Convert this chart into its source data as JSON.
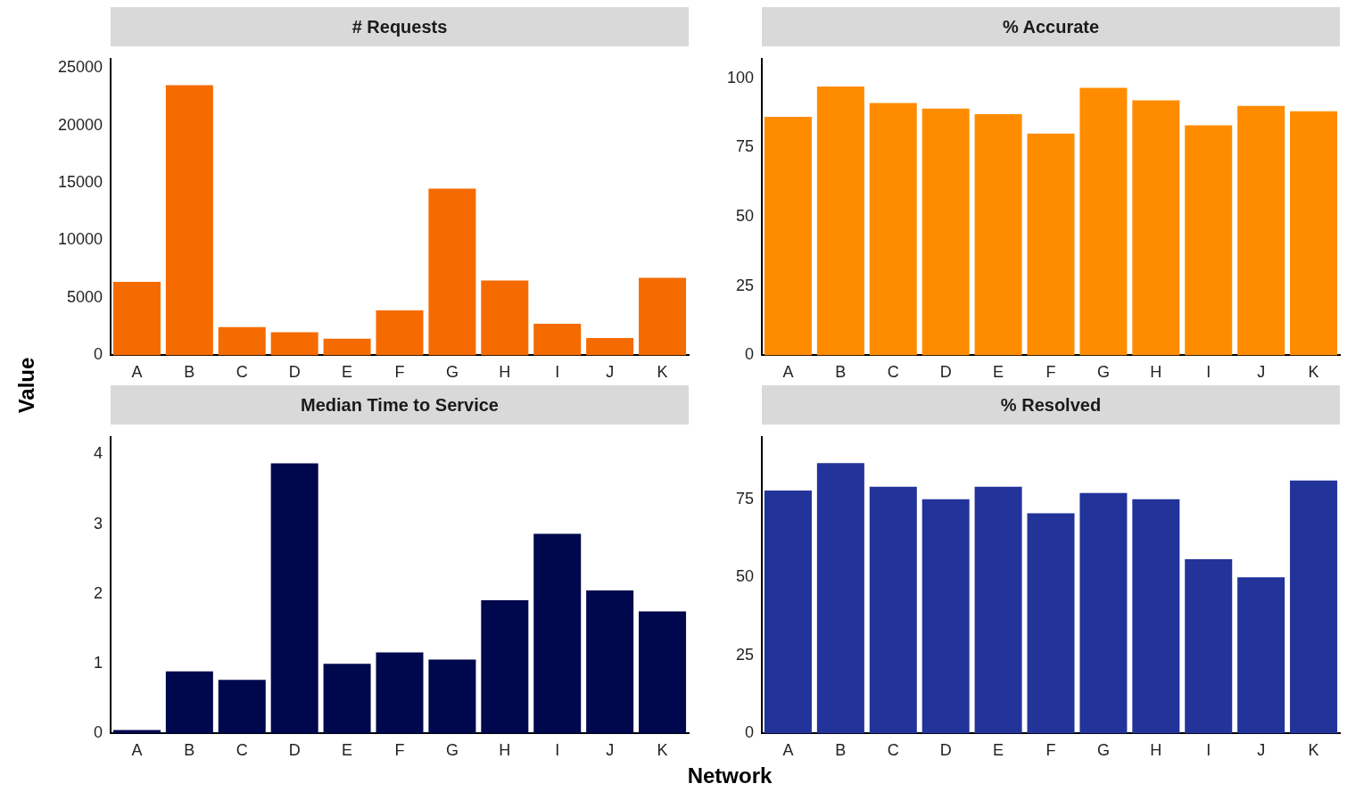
{
  "chart_data": [
    {
      "type": "bar",
      "title": "# Requests",
      "ylabel": "Value",
      "categories": [
        "A",
        "B",
        "C",
        "D",
        "E",
        "F",
        "G",
        "H",
        "I",
        "J",
        "K"
      ],
      "values": [
        6400,
        23500,
        2450,
        2000,
        1450,
        3900,
        14500,
        6500,
        2750,
        1500,
        6750
      ],
      "color": "#f56b00",
      "ylim": [
        0,
        25800
      ],
      "yticks": [
        0,
        5000,
        10000,
        15000,
        20000,
        25000
      ]
    },
    {
      "type": "bar",
      "title": "% Accurate",
      "categories": [
        "A",
        "B",
        "C",
        "D",
        "E",
        "F",
        "G",
        "H",
        "I",
        "J",
        "K"
      ],
      "values": [
        86,
        97,
        91,
        89,
        87,
        80,
        96.5,
        92,
        83,
        90,
        88
      ],
      "color": "#ff8c00",
      "ylim": [
        0,
        107
      ],
      "yticks": [
        0,
        25,
        50,
        75,
        100
      ]
    },
    {
      "type": "bar",
      "title": "Median Time to Service",
      "xlabel": "Network",
      "categories": [
        "A",
        "B",
        "C",
        "D",
        "E",
        "F",
        "G",
        "H",
        "I",
        "J",
        "K"
      ],
      "values": [
        0.05,
        0.89,
        0.77,
        3.87,
        1.0,
        1.16,
        1.06,
        1.91,
        2.86,
        2.05,
        1.75
      ],
      "color": "#00084d",
      "ylim": [
        0,
        4.25
      ],
      "yticks": [
        0,
        1,
        2,
        3,
        4
      ]
    },
    {
      "type": "bar",
      "title": "% Resolved",
      "categories": [
        "A",
        "B",
        "C",
        "D",
        "E",
        "F",
        "G",
        "H",
        "I",
        "J",
        "K"
      ],
      "values": [
        77.8,
        86.6,
        79,
        75,
        79,
        70.5,
        77,
        75,
        55.8,
        50,
        81
      ],
      "color": "#22339a",
      "ylim": [
        0,
        95
      ],
      "yticks": [
        0,
        25,
        50,
        75
      ]
    }
  ]
}
